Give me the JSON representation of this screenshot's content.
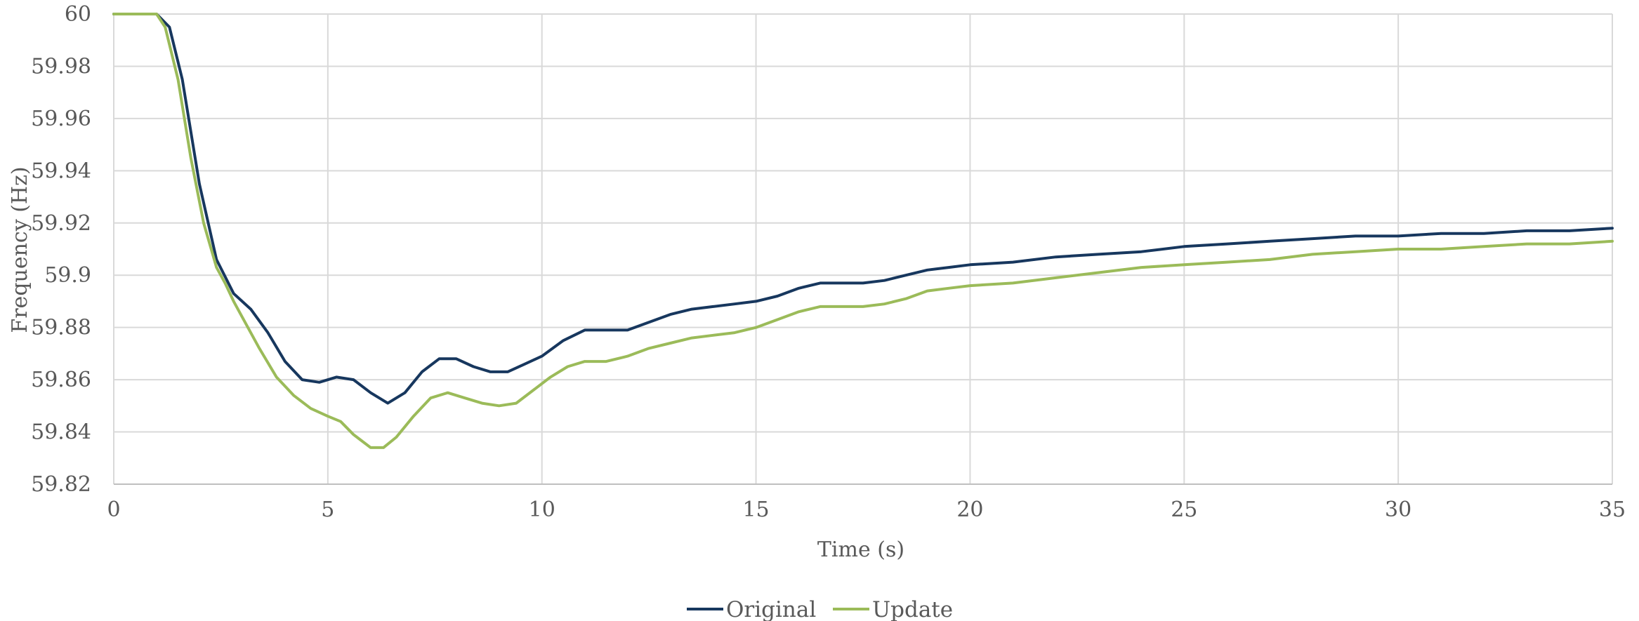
{
  "chart_data": {
    "type": "line",
    "title": "",
    "xlabel": "Time (s)",
    "ylabel": "Frequency (Hz)",
    "xlim": [
      0,
      35
    ],
    "ylim": [
      59.82,
      60
    ],
    "x_ticks": [
      0,
      5,
      10,
      15,
      20,
      25,
      30,
      35
    ],
    "y_ticks": [
      59.82,
      59.84,
      59.86,
      59.88,
      59.9,
      59.92,
      59.94,
      59.96,
      59.98,
      60
    ],
    "y_tick_labels": [
      "59.82",
      "59.84",
      "59.86",
      "59.88",
      "59.9",
      "59.92",
      "59.94",
      "59.96",
      "59.98",
      "60"
    ],
    "grid": "on (horizontal and vertical)",
    "legend_position": "bottom-center",
    "series": [
      {
        "name": "Original",
        "color": "#17375e",
        "points": [
          [
            0,
            60.0
          ],
          [
            1.0,
            60.0
          ],
          [
            1.3,
            59.995
          ],
          [
            1.6,
            59.975
          ],
          [
            2.0,
            59.935
          ],
          [
            2.4,
            59.906
          ],
          [
            2.8,
            59.893
          ],
          [
            3.2,
            59.887
          ],
          [
            3.6,
            59.878
          ],
          [
            4.0,
            59.867
          ],
          [
            4.4,
            59.86
          ],
          [
            4.8,
            59.859
          ],
          [
            5.2,
            59.861
          ],
          [
            5.6,
            59.86
          ],
          [
            6.0,
            59.855
          ],
          [
            6.4,
            59.851
          ],
          [
            6.8,
            59.855
          ],
          [
            7.2,
            59.863
          ],
          [
            7.6,
            59.868
          ],
          [
            8.0,
            59.868
          ],
          [
            8.4,
            59.865
          ],
          [
            8.8,
            59.863
          ],
          [
            9.2,
            59.863
          ],
          [
            9.6,
            59.866
          ],
          [
            10.0,
            59.869
          ],
          [
            10.5,
            59.875
          ],
          [
            11.0,
            59.879
          ],
          [
            11.5,
            59.879
          ],
          [
            12.0,
            59.879
          ],
          [
            12.5,
            59.882
          ],
          [
            13.0,
            59.885
          ],
          [
            13.5,
            59.887
          ],
          [
            14.0,
            59.888
          ],
          [
            14.5,
            59.889
          ],
          [
            15.0,
            59.89
          ],
          [
            15.5,
            59.892
          ],
          [
            16.0,
            59.895
          ],
          [
            16.5,
            59.897
          ],
          [
            17.0,
            59.897
          ],
          [
            17.5,
            59.897
          ],
          [
            18.0,
            59.898
          ],
          [
            18.5,
            59.9
          ],
          [
            19.0,
            59.902
          ],
          [
            19.5,
            59.903
          ],
          [
            20.0,
            59.904
          ],
          [
            21.0,
            59.905
          ],
          [
            22.0,
            59.907
          ],
          [
            23.0,
            59.908
          ],
          [
            24.0,
            59.909
          ],
          [
            25.0,
            59.911
          ],
          [
            26.0,
            59.912
          ],
          [
            27.0,
            59.913
          ],
          [
            28.0,
            59.914
          ],
          [
            29.0,
            59.915
          ],
          [
            30.0,
            59.915
          ],
          [
            31.0,
            59.916
          ],
          [
            32.0,
            59.916
          ],
          [
            33.0,
            59.917
          ],
          [
            34.0,
            59.917
          ],
          [
            35.0,
            59.918
          ]
        ]
      },
      {
        "name": "Update",
        "color": "#9bbb59",
        "points": [
          [
            0,
            60.0
          ],
          [
            1.0,
            60.0
          ],
          [
            1.2,
            59.995
          ],
          [
            1.5,
            59.975
          ],
          [
            1.8,
            59.945
          ],
          [
            2.1,
            59.92
          ],
          [
            2.4,
            59.903
          ],
          [
            2.6,
            59.897
          ],
          [
            2.8,
            59.89
          ],
          [
            3.0,
            59.884
          ],
          [
            3.4,
            59.872
          ],
          [
            3.8,
            59.861
          ],
          [
            4.2,
            59.854
          ],
          [
            4.6,
            59.849
          ],
          [
            5.0,
            59.846
          ],
          [
            5.3,
            59.844
          ],
          [
            5.6,
            59.839
          ],
          [
            6.0,
            59.834
          ],
          [
            6.3,
            59.834
          ],
          [
            6.6,
            59.838
          ],
          [
            7.0,
            59.846
          ],
          [
            7.4,
            59.853
          ],
          [
            7.8,
            59.855
          ],
          [
            8.2,
            59.853
          ],
          [
            8.6,
            59.851
          ],
          [
            9.0,
            59.85
          ],
          [
            9.4,
            59.851
          ],
          [
            9.8,
            59.856
          ],
          [
            10.2,
            59.861
          ],
          [
            10.6,
            59.865
          ],
          [
            11.0,
            59.867
          ],
          [
            11.5,
            59.867
          ],
          [
            12.0,
            59.869
          ],
          [
            12.5,
            59.872
          ],
          [
            13.0,
            59.874
          ],
          [
            13.5,
            59.876
          ],
          [
            14.0,
            59.877
          ],
          [
            14.5,
            59.878
          ],
          [
            15.0,
            59.88
          ],
          [
            15.5,
            59.883
          ],
          [
            16.0,
            59.886
          ],
          [
            16.5,
            59.888
          ],
          [
            17.0,
            59.888
          ],
          [
            17.5,
            59.888
          ],
          [
            18.0,
            59.889
          ],
          [
            18.5,
            59.891
          ],
          [
            19.0,
            59.894
          ],
          [
            19.5,
            59.895
          ],
          [
            20.0,
            59.896
          ],
          [
            21.0,
            59.897
          ],
          [
            22.0,
            59.899
          ],
          [
            23.0,
            59.901
          ],
          [
            24.0,
            59.903
          ],
          [
            25.0,
            59.904
          ],
          [
            26.0,
            59.905
          ],
          [
            27.0,
            59.906
          ],
          [
            28.0,
            59.908
          ],
          [
            29.0,
            59.909
          ],
          [
            30.0,
            59.91
          ],
          [
            31.0,
            59.91
          ],
          [
            32.0,
            59.911
          ],
          [
            33.0,
            59.912
          ],
          [
            34.0,
            59.912
          ],
          [
            35.0,
            59.913
          ]
        ]
      }
    ]
  }
}
